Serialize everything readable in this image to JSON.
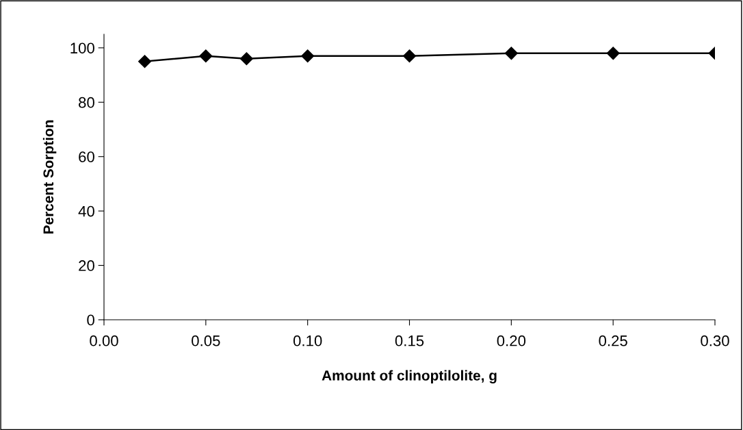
{
  "chart_data": {
    "type": "line",
    "xlabel": "Amount of clinoptilolite, g",
    "ylabel": "Percent Sorption",
    "x": [
      0.02,
      0.05,
      0.07,
      0.1,
      0.15,
      0.2,
      0.25,
      0.3
    ],
    "series": [
      {
        "color": "#000000",
        "values": [
          95,
          97,
          96,
          97,
          97,
          98,
          98,
          98
        ]
      }
    ],
    "xlim": [
      0,
      0.3
    ],
    "xticks": [
      {
        "value": 0,
        "label": "0.00"
      },
      {
        "value": 0.05,
        "label": "0.05"
      },
      {
        "value": 0.1,
        "label": "0.10"
      },
      {
        "value": 0.15,
        "label": "0.15"
      },
      {
        "value": 0.2,
        "label": "0.20"
      },
      {
        "value": 0.25,
        "label": "0.25"
      },
      {
        "value": 0.3,
        "label": "0.30"
      }
    ],
    "ylim": [
      0,
      105
    ],
    "yticks": [
      0,
      20,
      40,
      60,
      80,
      100
    ],
    "grid": false,
    "legend": false,
    "marker": "diamond",
    "line_style": "solid"
  }
}
